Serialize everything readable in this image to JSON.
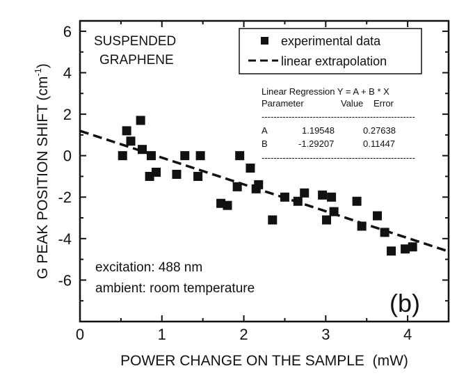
{
  "chart_data": {
    "type": "scatter",
    "xlabel": "POWER CHANGE ON THE SAMPLE  (mW)",
    "ylabel": "G PEAK POSITION SHIFT (cm",
    "ylabel_sup": "-1",
    "ylabel_end": ")",
    "xlim": [
      0,
      4.5
    ],
    "ylim": [
      -8,
      6.5
    ],
    "x_ticks": [
      0,
      1,
      2,
      3,
      4
    ],
    "y_ticks": [
      -6,
      -4,
      -2,
      0,
      2,
      4,
      6
    ],
    "grid": false,
    "legend_position": "top-right",
    "series": [
      {
        "name": "experimental data",
        "marker": "square",
        "points": [
          [
            0.52,
            0.0
          ],
          [
            0.57,
            1.2
          ],
          [
            0.62,
            0.7
          ],
          [
            0.74,
            1.7
          ],
          [
            0.76,
            0.3
          ],
          [
            0.85,
            -1.0
          ],
          [
            0.87,
            0.0
          ],
          [
            0.93,
            -0.8
          ],
          [
            1.18,
            -0.9
          ],
          [
            1.28,
            0.0
          ],
          [
            1.44,
            -1.0
          ],
          [
            1.47,
            0.0
          ],
          [
            1.72,
            -2.3
          ],
          [
            1.8,
            -2.4
          ],
          [
            1.92,
            -1.5
          ],
          [
            1.95,
            0.0
          ],
          [
            2.08,
            -0.6
          ],
          [
            2.15,
            -1.6
          ],
          [
            2.18,
            -1.4
          ],
          [
            2.35,
            -3.1
          ],
          [
            2.5,
            -2.0
          ],
          [
            2.66,
            -2.2
          ],
          [
            2.74,
            -1.8
          ],
          [
            2.96,
            -1.9
          ],
          [
            3.01,
            -3.1
          ],
          [
            3.07,
            -2.0
          ],
          [
            3.1,
            -2.7
          ],
          [
            3.38,
            -2.2
          ],
          [
            3.44,
            -3.4
          ],
          [
            3.63,
            -2.9
          ],
          [
            3.72,
            -3.7
          ],
          [
            3.8,
            -4.6
          ],
          [
            3.97,
            -4.5
          ],
          [
            4.06,
            -4.4
          ]
        ]
      },
      {
        "name": "linear extrapolation",
        "style": "dashed",
        "intercept": 1.19548,
        "slope": -1.29207,
        "x_range": [
          0,
          4.5
        ]
      }
    ],
    "annotations": {
      "sample": [
        "SUSPENDED",
        "GRAPHENE"
      ],
      "conditions": [
        "excitation: 488 nm",
        "ambient: room temperature"
      ],
      "panel_label": "(b)"
    },
    "regression_table": {
      "title": "Linear Regression Y = A + B * X",
      "headers": [
        "Parameter",
        "Value",
        "Error"
      ],
      "separator": "---------------------------------------------------",
      "rows": [
        [
          "A",
          "1.19548",
          "0.27638"
        ],
        [
          "B",
          "-1.29207",
          "0.11447"
        ]
      ]
    }
  }
}
